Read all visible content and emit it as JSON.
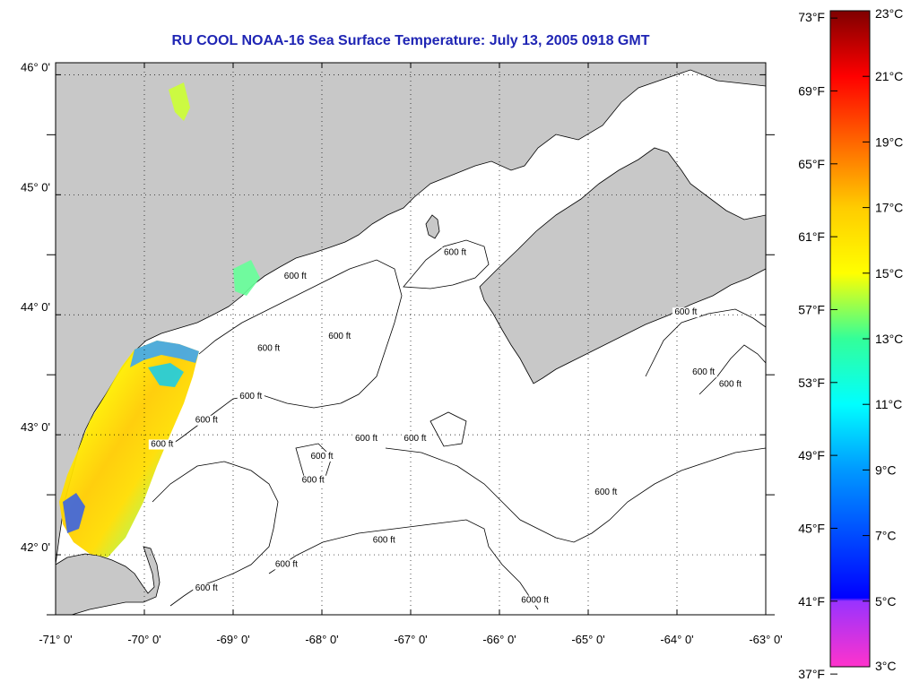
{
  "title": "RU COOL  NOAA-16  Sea Surface Temperature:  July 13, 2005 0918 GMT",
  "map": {
    "lon_range": [
      -71,
      -63
    ],
    "lat_range": [
      41.5,
      46.1
    ],
    "x_ticks": [
      {
        "lon": -71,
        "label": "-71° 0'"
      },
      {
        "lon": -70,
        "label": "-70° 0'"
      },
      {
        "lon": -69,
        "label": "-69° 0'"
      },
      {
        "lon": -68,
        "label": "-68° 0'"
      },
      {
        "lon": -67,
        "label": "-67° 0'"
      },
      {
        "lon": -66,
        "label": "-66° 0'"
      },
      {
        "lon": -65,
        "label": "-65° 0'"
      },
      {
        "lon": -64,
        "label": "-64° 0'"
      },
      {
        "lon": -63,
        "label": "-63° 0'"
      }
    ],
    "y_ticks": [
      {
        "lat": 46,
        "label": "46° 0'"
      },
      {
        "lat": 45,
        "label": "45° 0'"
      },
      {
        "lat": 44,
        "label": "44° 0'"
      },
      {
        "lat": 43,
        "label": "43° 0'"
      },
      {
        "lat": 42,
        "label": "42° 0'"
      }
    ],
    "grid": "dotted",
    "land_color": "#c8c8c8",
    "ocean_color": "#ffffff",
    "contour_labels": [
      {
        "text": "600 ft",
        "lon": -68.3,
        "lat": 44.3
      },
      {
        "text": "600 ft",
        "lon": -66.5,
        "lat": 44.5
      },
      {
        "text": "600 ft",
        "lon": -67.8,
        "lat": 43.8
      },
      {
        "text": "600 ft",
        "lon": -68.6,
        "lat": 43.7
      },
      {
        "text": "600 ft",
        "lon": -68.8,
        "lat": 43.3
      },
      {
        "text": "600 ft",
        "lon": -69.3,
        "lat": 43.1
      },
      {
        "text": "600 ft",
        "lon": -69.8,
        "lat": 42.9
      },
      {
        "text": "600 ft",
        "lon": -68.0,
        "lat": 42.8
      },
      {
        "text": "600 ft",
        "lon": -67.5,
        "lat": 42.95
      },
      {
        "text": "600 ft",
        "lon": -68.1,
        "lat": 42.6
      },
      {
        "text": "600 ft",
        "lon": -69.3,
        "lat": 41.7
      },
      {
        "text": "600 ft",
        "lon": -68.4,
        "lat": 41.9
      },
      {
        "text": "600 ft",
        "lon": -67.3,
        "lat": 42.1
      },
      {
        "text": "600 ft",
        "lon": -64.8,
        "lat": 42.5
      },
      {
        "text": "600 ft",
        "lon": -63.9,
        "lat": 44.0
      },
      {
        "text": "600 ft",
        "lon": -63.7,
        "lat": 43.5
      },
      {
        "text": "600 ft",
        "lon": -63.4,
        "lat": 43.4
      },
      {
        "text": "600 ft",
        "lon": -66.95,
        "lat": 42.95
      },
      {
        "text": "6000 ft",
        "lon": -65.6,
        "lat": 41.6
      }
    ]
  },
  "colorbar": {
    "min_c": 3,
    "max_c": 23,
    "celsius_labels": [
      {
        "value": 23,
        "label": "23°C"
      },
      {
        "value": 21,
        "label": "21°C"
      },
      {
        "value": 19,
        "label": "19°C"
      },
      {
        "value": 17,
        "label": "17°C"
      },
      {
        "value": 15,
        "label": "15°C"
      },
      {
        "value": 13,
        "label": "13°C"
      },
      {
        "value": 11,
        "label": "11°C"
      },
      {
        "value": 9,
        "label": "9°C"
      },
      {
        "value": 7,
        "label": "7°C"
      },
      {
        "value": 5,
        "label": "5°C"
      },
      {
        "value": 3,
        "label": "3°C"
      }
    ],
    "fahrenheit_labels": [
      {
        "value": 73,
        "label": "73°F"
      },
      {
        "value": 69,
        "label": "69°F"
      },
      {
        "value": 65,
        "label": "65°F"
      },
      {
        "value": 61,
        "label": "61°F"
      },
      {
        "value": 57,
        "label": "57°F"
      },
      {
        "value": 53,
        "label": "53°F"
      },
      {
        "value": 49,
        "label": "49°F"
      },
      {
        "value": 45,
        "label": "45°F"
      },
      {
        "value": 41,
        "label": "41°F"
      },
      {
        "value": 37,
        "label": "37°F"
      }
    ],
    "stops": [
      {
        "c": 3,
        "color": "#ff33cc"
      },
      {
        "c": 5,
        "color": "#9933ff"
      },
      {
        "c": 5.1,
        "color": "#0000ff"
      },
      {
        "c": 9,
        "color": "#0099ff"
      },
      {
        "c": 11,
        "color": "#00ffff"
      },
      {
        "c": 13,
        "color": "#33ff99"
      },
      {
        "c": 15,
        "color": "#ffff00"
      },
      {
        "c": 17,
        "color": "#ffcc00"
      },
      {
        "c": 19,
        "color": "#ff6600"
      },
      {
        "c": 21,
        "color": "#ff0000"
      },
      {
        "c": 23,
        "color": "#7f0000"
      }
    ]
  }
}
